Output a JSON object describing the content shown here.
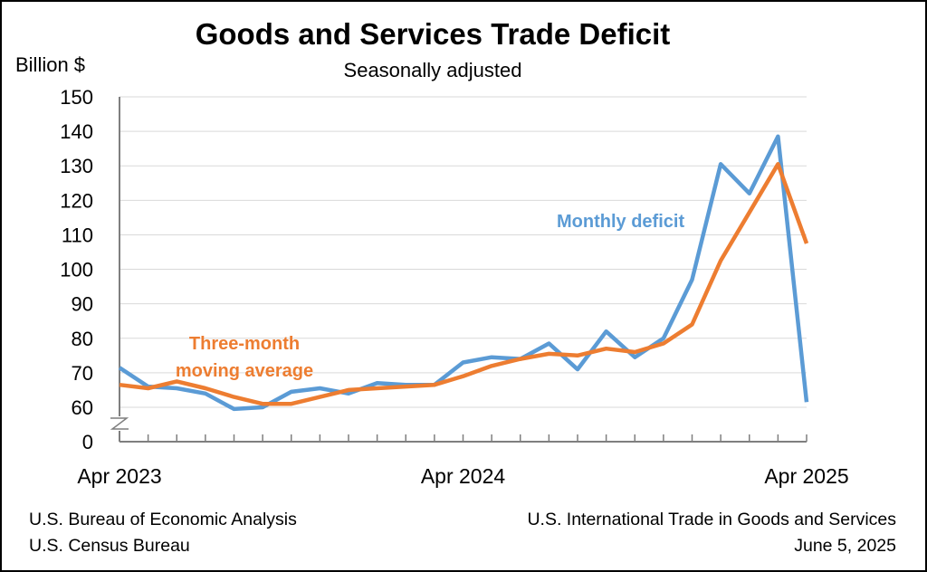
{
  "chart_data": {
    "type": "line",
    "title": "Goods and Services Trade Deficit",
    "subtitle": "Seasonally adjusted",
    "ylabel": "Billion $",
    "ylim": [
      60,
      150
    ],
    "yticks": [
      0,
      60,
      70,
      80,
      90,
      100,
      110,
      120,
      130,
      140,
      150
    ],
    "axis_break": true,
    "grid": true,
    "x_tick_labels": [
      "Apr 2023",
      "Apr 2024",
      "Apr 2025"
    ],
    "x": [
      "Apr 2023",
      "May 2023",
      "Jun 2023",
      "Jul 2023",
      "Aug 2023",
      "Sep 2023",
      "Oct 2023",
      "Nov 2023",
      "Dec 2023",
      "Jan 2024",
      "Feb 2024",
      "Mar 2024",
      "Apr 2024",
      "May 2024",
      "Jun 2024",
      "Jul 2024",
      "Aug 2024",
      "Sep 2024",
      "Oct 2024",
      "Nov 2024",
      "Dec 2024",
      "Jan 2025",
      "Feb 2025",
      "Mar 2025",
      "Apr 2025"
    ],
    "series": [
      {
        "name": "Monthly deficit",
        "color": "#5b9bd5",
        "values": [
          71.5,
          66,
          65.5,
          64,
          59.5,
          60,
          64.5,
          65.5,
          64,
          67,
          66.5,
          66.5,
          73,
          74.5,
          74,
          78.5,
          71,
          82,
          74.5,
          80,
          97,
          130.5,
          122,
          138.5,
          61.5
        ]
      },
      {
        "name": "Three-month moving average",
        "color": "#ed7d31",
        "values": [
          66.5,
          65.5,
          67.5,
          65.5,
          63,
          61,
          61,
          63,
          65,
          65.5,
          66,
          66.5,
          69,
          72,
          74,
          75.5,
          75,
          77,
          76,
          78.5,
          84,
          102.5,
          116.5,
          130.5,
          107.5
        ]
      }
    ],
    "annotations": {
      "monthly": "Monthly deficit",
      "avg_line1": "Three-month",
      "avg_line2": "moving average"
    }
  },
  "footer": {
    "left_line1": "U.S. Bureau of Economic Analysis",
    "left_line2": "U.S. Census Bureau",
    "right_line1": "U.S. International Trade in Goods and Services",
    "right_line2": "June 5, 2025"
  }
}
